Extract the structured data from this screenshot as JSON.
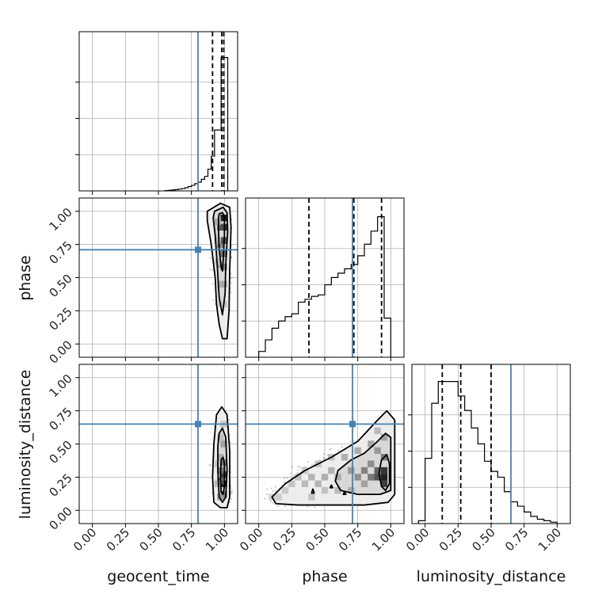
{
  "chart_data": {
    "type": "corner",
    "parameters": [
      "geocent_time",
      "phase",
      "luminosity_distance"
    ],
    "tick_labels": [
      "0.00",
      "0.25",
      "0.50",
      "0.75",
      "1.00"
    ],
    "axis_range": [
      -0.1,
      1.1
    ],
    "grid": true,
    "truths": {
      "geocent_time": 0.8,
      "phase": 0.71,
      "luminosity_distance": 0.65
    },
    "truth_color": "#4682b4",
    "histograms": {
      "geocent_time": {
        "bin_width": 0.025,
        "bins": [
          [
            0.55,
            0.002
          ],
          [
            0.575,
            0.004
          ],
          [
            0.6,
            0.006
          ],
          [
            0.625,
            0.009
          ],
          [
            0.65,
            0.012
          ],
          [
            0.675,
            0.016
          ],
          [
            0.7,
            0.022
          ],
          [
            0.725,
            0.03
          ],
          [
            0.75,
            0.038
          ],
          [
            0.775,
            0.05
          ],
          [
            0.8,
            0.06
          ],
          [
            0.825,
            0.08
          ],
          [
            0.85,
            0.1
          ],
          [
            0.875,
            0.15
          ],
          [
            0.9,
            0.24
          ],
          [
            0.925,
            0.42
          ],
          [
            0.95,
            0.42
          ],
          [
            0.975,
            0.92
          ],
          [
            1.0,
            0.92
          ]
        ],
        "quantiles": [
          0.91,
          0.98,
          0.995
        ]
      },
      "phase": {
        "bin_width": 0.05,
        "bins": [
          [
            0.0,
            0.04
          ],
          [
            0.05,
            0.12
          ],
          [
            0.1,
            0.2
          ],
          [
            0.15,
            0.25
          ],
          [
            0.2,
            0.28
          ],
          [
            0.25,
            0.3
          ],
          [
            0.3,
            0.38
          ],
          [
            0.35,
            0.4
          ],
          [
            0.4,
            0.42
          ],
          [
            0.45,
            0.43
          ],
          [
            0.5,
            0.5
          ],
          [
            0.55,
            0.55
          ],
          [
            0.6,
            0.58
          ],
          [
            0.65,
            0.61
          ],
          [
            0.7,
            0.64
          ],
          [
            0.75,
            0.7
          ],
          [
            0.8,
            0.78
          ],
          [
            0.85,
            0.87
          ],
          [
            0.9,
            0.97
          ],
          [
            0.95,
            0.27
          ]
        ],
        "quantiles": [
          0.38,
          0.72,
          0.93
        ]
      },
      "luminosity_distance": {
        "bin_width": 0.05,
        "bins": [
          [
            -0.05,
            0.02
          ],
          [
            0.0,
            0.45
          ],
          [
            0.05,
            0.83
          ],
          [
            0.1,
            0.98
          ],
          [
            0.15,
            0.98
          ],
          [
            0.2,
            0.98
          ],
          [
            0.25,
            0.88
          ],
          [
            0.3,
            0.78
          ],
          [
            0.35,
            0.66
          ],
          [
            0.4,
            0.55
          ],
          [
            0.45,
            0.43
          ],
          [
            0.5,
            0.36
          ],
          [
            0.55,
            0.32
          ],
          [
            0.6,
            0.22
          ],
          [
            0.65,
            0.15
          ],
          [
            0.7,
            0.12
          ],
          [
            0.75,
            0.08
          ],
          [
            0.8,
            0.05
          ],
          [
            0.85,
            0.03
          ],
          [
            0.9,
            0.02
          ],
          [
            0.95,
            0.01
          ]
        ],
        "quantiles": [
          0.13,
          0.27,
          0.5
        ]
      }
    },
    "joint_2d": [
      {
        "x": "geocent_time",
        "y": "phase",
        "cells": [
          [
            0.995,
            0.95,
            1.0
          ],
          [
            0.995,
            0.88,
            0.9
          ],
          [
            0.97,
            0.88,
            0.65
          ],
          [
            0.97,
            0.75,
            0.5
          ],
          [
            0.995,
            0.78,
            0.75
          ],
          [
            0.995,
            0.68,
            0.6
          ],
          [
            0.97,
            0.6,
            0.35
          ],
          [
            0.995,
            0.58,
            0.45
          ],
          [
            0.97,
            0.45,
            0.25
          ],
          [
            0.995,
            0.45,
            0.3
          ],
          [
            0.995,
            0.3,
            0.18
          ],
          [
            0.97,
            0.3,
            0.12
          ],
          [
            0.95,
            0.92,
            0.3
          ],
          [
            0.95,
            0.78,
            0.22
          ],
          [
            0.95,
            0.62,
            0.15
          ]
        ],
        "contours": [
          {
            "level": 1,
            "points": [
              [
                0.96,
                0.98
              ],
              [
                0.985,
                0.99
              ],
              [
                1.0,
                0.96
              ],
              [
                1.0,
                0.82
              ],
              [
                0.99,
                0.62
              ],
              [
                0.985,
                0.55
              ],
              [
                0.975,
                0.58
              ],
              [
                0.96,
                0.72
              ],
              [
                0.955,
                0.86
              ],
              [
                0.955,
                0.95
              ]
            ]
          },
          {
            "level": 2,
            "points": [
              [
                0.925,
                1.0
              ],
              [
                0.99,
                1.03
              ],
              [
                1.02,
                0.99
              ],
              [
                1.025,
                0.85
              ],
              [
                1.01,
                0.6
              ],
              [
                1.005,
                0.38
              ],
              [
                0.985,
                0.22
              ],
              [
                0.96,
                0.35
              ],
              [
                0.945,
                0.6
              ],
              [
                0.93,
                0.82
              ],
              [
                0.915,
                0.95
              ]
            ]
          },
          {
            "level": 3,
            "points": [
              [
                0.87,
                1.0
              ],
              [
                0.97,
                1.06
              ],
              [
                1.04,
                1.03
              ],
              [
                1.05,
                0.88
              ],
              [
                1.04,
                0.55
              ],
              [
                1.035,
                0.25
              ],
              [
                1.02,
                0.04
              ],
              [
                0.985,
                0.04
              ],
              [
                0.96,
                0.15
              ],
              [
                0.94,
                0.3
              ],
              [
                0.93,
                0.5
              ],
              [
                0.9,
                0.75
              ],
              [
                0.87,
                0.93
              ]
            ]
          }
        ]
      },
      {
        "x": "geocent_time",
        "y": "luminosity_distance",
        "cells": [
          [
            0.995,
            0.2,
            1.0
          ],
          [
            0.995,
            0.27,
            0.85
          ],
          [
            0.97,
            0.22,
            0.6
          ],
          [
            0.97,
            0.3,
            0.5
          ],
          [
            0.995,
            0.36,
            0.55
          ],
          [
            0.97,
            0.4,
            0.3
          ],
          [
            0.995,
            0.5,
            0.35
          ],
          [
            0.97,
            0.55,
            0.2
          ],
          [
            0.995,
            0.65,
            0.18
          ],
          [
            0.995,
            0.12,
            0.55
          ],
          [
            0.97,
            0.1,
            0.35
          ],
          [
            0.95,
            0.2,
            0.25
          ],
          [
            0.95,
            0.35,
            0.18
          ]
        ],
        "contours": [
          {
            "level": 1,
            "points": [
              [
                0.975,
                0.38
              ],
              [
                0.99,
                0.4
              ],
              [
                1.0,
                0.35
              ],
              [
                1.0,
                0.18
              ],
              [
                0.99,
                0.12
              ],
              [
                0.975,
                0.14
              ],
              [
                0.97,
                0.25
              ]
            ]
          },
          {
            "level": 2,
            "points": [
              [
                0.96,
                0.58
              ],
              [
                0.985,
                0.62
              ],
              [
                1.01,
                0.55
              ],
              [
                1.02,
                0.3
              ],
              [
                1.01,
                0.1
              ],
              [
                0.985,
                0.06
              ],
              [
                0.96,
                0.1
              ],
              [
                0.95,
                0.3
              ],
              [
                0.95,
                0.48
              ]
            ]
          },
          {
            "level": 3,
            "points": [
              [
                0.94,
                0.72
              ],
              [
                0.98,
                0.78
              ],
              [
                1.02,
                0.72
              ],
              [
                1.04,
                0.45
              ],
              [
                1.04,
                0.1
              ],
              [
                1.02,
                0.02
              ],
              [
                0.97,
                0.02
              ],
              [
                0.92,
                0.06
              ],
              [
                0.91,
                0.25
              ],
              [
                0.92,
                0.5
              ]
            ]
          }
        ]
      },
      {
        "x": "phase",
        "y": "luminosity_distance",
        "cells": [
          [
            0.95,
            0.25,
            1.0
          ],
          [
            0.95,
            0.3,
            0.9
          ],
          [
            0.9,
            0.25,
            0.75
          ],
          [
            0.95,
            0.2,
            0.85
          ],
          [
            0.9,
            0.3,
            0.65
          ],
          [
            0.85,
            0.25,
            0.55
          ],
          [
            0.8,
            0.3,
            0.5
          ],
          [
            0.75,
            0.25,
            0.45
          ],
          [
            0.7,
            0.3,
            0.4
          ],
          [
            0.85,
            0.35,
            0.45
          ],
          [
            0.95,
            0.4,
            0.55
          ],
          [
            0.9,
            0.45,
            0.4
          ],
          [
            0.8,
            0.2,
            0.35
          ],
          [
            0.6,
            0.25,
            0.3
          ],
          [
            0.55,
            0.3,
            0.3
          ],
          [
            0.5,
            0.25,
            0.3
          ],
          [
            0.45,
            0.2,
            0.28
          ],
          [
            0.4,
            0.25,
            0.28
          ],
          [
            0.35,
            0.2,
            0.25
          ],
          [
            0.3,
            0.25,
            0.22
          ],
          [
            0.25,
            0.2,
            0.2
          ],
          [
            0.2,
            0.15,
            0.18
          ],
          [
            0.15,
            0.1,
            0.15
          ],
          [
            0.1,
            0.1,
            0.12
          ],
          [
            0.6,
            0.15,
            0.25
          ],
          [
            0.7,
            0.15,
            0.3
          ],
          [
            0.5,
            0.15,
            0.22
          ],
          [
            0.4,
            0.1,
            0.2
          ],
          [
            0.65,
            0.4,
            0.3
          ],
          [
            0.75,
            0.45,
            0.32
          ],
          [
            0.85,
            0.5,
            0.35
          ],
          [
            0.55,
            0.4,
            0.22
          ],
          [
            0.45,
            0.35,
            0.2
          ],
          [
            0.35,
            0.3,
            0.18
          ],
          [
            0.95,
            0.55,
            0.35
          ],
          [
            0.9,
            0.6,
            0.25
          ]
        ],
        "contours": [
          {
            "level": 1,
            "points": [
              [
                0.93,
                0.38
              ],
              [
                0.97,
                0.42
              ],
              [
                0.99,
                0.35
              ],
              [
                0.99,
                0.2
              ],
              [
                0.96,
                0.15
              ],
              [
                0.93,
                0.18
              ],
              [
                0.91,
                0.28
              ]
            ]
          },
          {
            "level": 1,
            "points": [
              [
                0.4,
                0.13
              ],
              [
                0.41,
                0.16
              ],
              [
                0.42,
                0.13
              ]
            ]
          },
          {
            "level": 1,
            "points": [
              [
                0.54,
                0.17
              ],
              [
                0.55,
                0.19
              ],
              [
                0.56,
                0.17
              ]
            ]
          },
          {
            "level": 1,
            "points": [
              [
                0.64,
                0.12
              ],
              [
                0.65,
                0.14
              ],
              [
                0.66,
                0.12
              ]
            ]
          },
          {
            "level": 2,
            "points": [
              [
                0.6,
                0.3
              ],
              [
                0.7,
                0.38
              ],
              [
                0.8,
                0.43
              ],
              [
                0.9,
                0.52
              ],
              [
                0.96,
                0.58
              ],
              [
                1.0,
                0.55
              ],
              [
                1.0,
                0.15
              ],
              [
                0.92,
                0.12
              ],
              [
                0.75,
                0.12
              ],
              [
                0.62,
                0.15
              ],
              [
                0.58,
                0.22
              ]
            ]
          },
          {
            "level": 3,
            "points": [
              [
                0.1,
                0.1
              ],
              [
                0.2,
                0.2
              ],
              [
                0.35,
                0.3
              ],
              [
                0.55,
                0.4
              ],
              [
                0.75,
                0.52
              ],
              [
                0.9,
                0.68
              ],
              [
                0.97,
                0.75
              ],
              [
                1.03,
                0.68
              ],
              [
                1.03,
                0.12
              ],
              [
                0.98,
                0.06
              ],
              [
                0.8,
                0.04
              ],
              [
                0.5,
                0.04
              ],
              [
                0.3,
                0.04
              ],
              [
                0.13,
                0.05
              ]
            ]
          }
        ]
      }
    ]
  }
}
